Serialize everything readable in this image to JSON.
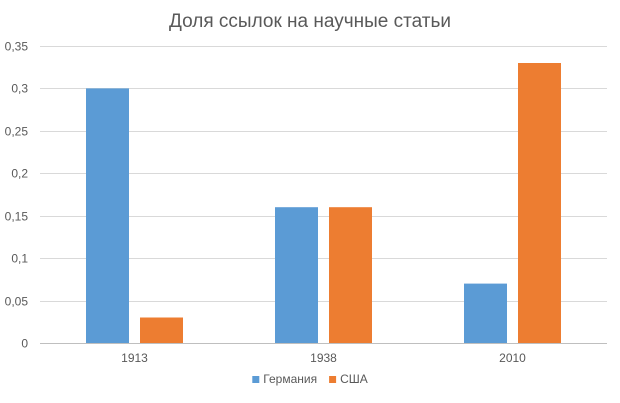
{
  "chart_data": {
    "type": "bar",
    "title": "Доля ссылок на научные статьи",
    "xlabel": "",
    "ylabel": "",
    "categories": [
      "1913",
      "1938",
      "2010"
    ],
    "series": [
      {
        "name": "Германия",
        "values": [
          0.3,
          0.16,
          0.07
        ],
        "color": "#5B9BD5"
      },
      {
        "name": "США",
        "values": [
          0.03,
          0.16,
          0.33
        ],
        "color": "#ED7D31"
      }
    ],
    "ylim": [
      0,
      0.35
    ],
    "yticks": [
      0,
      0.05,
      0.1,
      0.15,
      0.2,
      0.25,
      0.3,
      0.35
    ],
    "ytick_labels": [
      "0",
      "0,05",
      "0,1",
      "0,15",
      "0,2",
      "0,25",
      "0,3",
      "0,35"
    ],
    "grid": true,
    "legend_position": "bottom"
  }
}
